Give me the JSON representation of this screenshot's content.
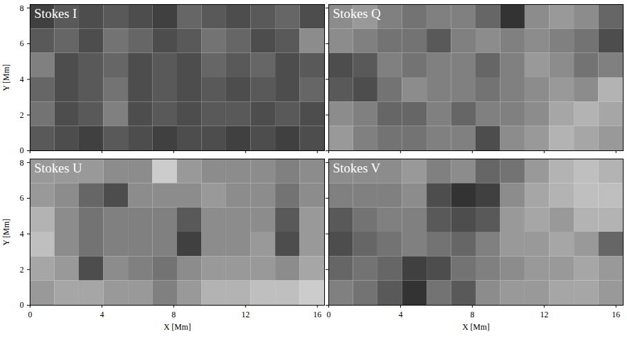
{
  "chart_data": [
    {
      "type": "heatmap",
      "title": "Stokes I",
      "ylabel": "Y [Mm]",
      "tick_labels": "y",
      "xlim": [
        0,
        16.4
      ],
      "ylim": [
        0,
        8.2
      ],
      "xticks": [
        0,
        4,
        8,
        12,
        16
      ],
      "yticks": [
        0,
        2,
        4,
        6,
        8
      ],
      "zlim": [
        0,
        1
      ],
      "x_edges": [
        0,
        1.37,
        2.73,
        4.1,
        5.47,
        6.83,
        8.2,
        9.57,
        10.93,
        12.3,
        13.67,
        15.03,
        16.4
      ],
      "y_edges": [
        8.2,
        6.83,
        5.47,
        4.1,
        2.73,
        1.37,
        0
      ],
      "cells": [
        [
          0.25,
          0.35,
          0.3,
          0.35,
          0.3,
          0.25,
          0.4,
          0.35,
          0.3,
          0.35,
          0.4,
          0.3
        ],
        [
          0.35,
          0.4,
          0.3,
          0.45,
          0.4,
          0.3,
          0.35,
          0.45,
          0.4,
          0.3,
          0.35,
          0.55
        ],
        [
          0.5,
          0.3,
          0.35,
          0.4,
          0.3,
          0.35,
          0.3,
          0.4,
          0.35,
          0.4,
          0.3,
          0.35
        ],
        [
          0.4,
          0.3,
          0.35,
          0.45,
          0.3,
          0.35,
          0.3,
          0.35,
          0.3,
          0.35,
          0.3,
          0.4
        ],
        [
          0.45,
          0.3,
          0.35,
          0.5,
          0.3,
          0.35,
          0.3,
          0.35,
          0.35,
          0.3,
          0.35,
          0.3
        ],
        [
          0.35,
          0.3,
          0.25,
          0.35,
          0.3,
          0.25,
          0.3,
          0.3,
          0.25,
          0.3,
          0.25,
          0.3
        ]
      ]
    },
    {
      "type": "heatmap",
      "title": "Stokes Q",
      "tick_labels": false,
      "xlim": [
        0,
        16.4
      ],
      "ylim": [
        0,
        8.2
      ],
      "xticks": [
        0,
        4,
        8,
        12,
        16
      ],
      "yticks": [
        0,
        2,
        4,
        6,
        8
      ],
      "zlim": [
        0,
        1
      ],
      "x_edges": [
        0,
        1.37,
        2.73,
        4.1,
        5.47,
        6.83,
        8.2,
        9.57,
        10.93,
        12.3,
        13.67,
        15.03,
        16.4
      ],
      "y_edges": [
        8.2,
        6.83,
        5.47,
        4.1,
        2.73,
        1.37,
        0
      ],
      "cells": [
        [
          0.55,
          0.6,
          0.5,
          0.45,
          0.5,
          0.5,
          0.4,
          0.2,
          0.55,
          0.6,
          0.55,
          0.4
        ],
        [
          0.55,
          0.5,
          0.45,
          0.45,
          0.35,
          0.5,
          0.55,
          0.5,
          0.55,
          0.5,
          0.45,
          0.3
        ],
        [
          0.3,
          0.35,
          0.5,
          0.45,
          0.5,
          0.5,
          0.4,
          0.5,
          0.6,
          0.55,
          0.45,
          0.5
        ],
        [
          0.35,
          0.3,
          0.45,
          0.55,
          0.5,
          0.5,
          0.45,
          0.5,
          0.55,
          0.6,
          0.55,
          0.7
        ],
        [
          0.55,
          0.5,
          0.4,
          0.4,
          0.5,
          0.4,
          0.5,
          0.5,
          0.55,
          0.65,
          0.7,
          0.65
        ],
        [
          0.6,
          0.5,
          0.45,
          0.45,
          0.5,
          0.5,
          0.3,
          0.55,
          0.6,
          0.7,
          0.65,
          0.6
        ]
      ]
    },
    {
      "type": "heatmap",
      "title": "Stokes U",
      "xlabel": "X [Mm]",
      "ylabel": "Y [Mm]",
      "xlim": [
        0,
        16.4
      ],
      "ylim": [
        0,
        8.2
      ],
      "xticks": [
        0,
        4,
        8,
        12,
        16
      ],
      "yticks": [
        0,
        2,
        4,
        6,
        8
      ],
      "zlim": [
        0,
        1
      ],
      "x_edges": [
        0,
        1.37,
        2.73,
        4.1,
        5.47,
        6.83,
        8.2,
        9.57,
        10.93,
        12.3,
        13.67,
        15.03,
        16.4
      ],
      "y_edges": [
        8.2,
        6.83,
        5.47,
        4.1,
        2.73,
        1.37,
        0
      ],
      "cells": [
        [
          0.6,
          0.6,
          0.6,
          0.55,
          0.55,
          0.8,
          0.6,
          0.55,
          0.55,
          0.55,
          0.5,
          0.55
        ],
        [
          0.6,
          0.55,
          0.4,
          0.3,
          0.55,
          0.55,
          0.55,
          0.6,
          0.55,
          0.55,
          0.45,
          0.55
        ],
        [
          0.7,
          0.55,
          0.45,
          0.5,
          0.5,
          0.5,
          0.35,
          0.55,
          0.55,
          0.55,
          0.35,
          0.6
        ],
        [
          0.75,
          0.55,
          0.45,
          0.5,
          0.5,
          0.5,
          0.25,
          0.55,
          0.55,
          0.6,
          0.3,
          0.6
        ],
        [
          0.65,
          0.6,
          0.3,
          0.55,
          0.5,
          0.45,
          0.55,
          0.6,
          0.6,
          0.6,
          0.55,
          0.65
        ],
        [
          0.6,
          0.65,
          0.65,
          0.6,
          0.6,
          0.5,
          0.6,
          0.7,
          0.7,
          0.75,
          0.75,
          0.8
        ]
      ]
    },
    {
      "type": "heatmap",
      "title": "Stokes V",
      "xlabel": "X [Mm]",
      "tick_labels": "x",
      "xlim": [
        0,
        16.4
      ],
      "ylim": [
        0,
        8.2
      ],
      "xticks": [
        0,
        4,
        8,
        12,
        16
      ],
      "yticks": [
        0,
        2,
        4,
        6,
        8
      ],
      "zlim": [
        0,
        1
      ],
      "x_edges": [
        0,
        1.37,
        2.73,
        4.1,
        5.47,
        6.83,
        8.2,
        9.57,
        10.93,
        12.3,
        13.67,
        15.03,
        16.4
      ],
      "y_edges": [
        8.2,
        6.83,
        5.47,
        4.1,
        2.73,
        1.37,
        0
      ],
      "cells": [
        [
          0.55,
          0.55,
          0.55,
          0.6,
          0.5,
          0.55,
          0.4,
          0.45,
          0.6,
          0.7,
          0.75,
          0.7
        ],
        [
          0.5,
          0.5,
          0.5,
          0.55,
          0.3,
          0.2,
          0.25,
          0.55,
          0.65,
          0.7,
          0.75,
          0.75
        ],
        [
          0.35,
          0.45,
          0.5,
          0.5,
          0.35,
          0.3,
          0.35,
          0.6,
          0.65,
          0.6,
          0.7,
          0.7
        ],
        [
          0.3,
          0.4,
          0.45,
          0.5,
          0.45,
          0.4,
          0.5,
          0.6,
          0.6,
          0.65,
          0.6,
          0.4
        ],
        [
          0.4,
          0.45,
          0.4,
          0.25,
          0.3,
          0.45,
          0.5,
          0.55,
          0.6,
          0.6,
          0.65,
          0.6
        ],
        [
          0.5,
          0.45,
          0.35,
          0.2,
          0.45,
          0.35,
          0.55,
          0.6,
          0.6,
          0.65,
          0.65,
          0.6
        ]
      ]
    }
  ]
}
